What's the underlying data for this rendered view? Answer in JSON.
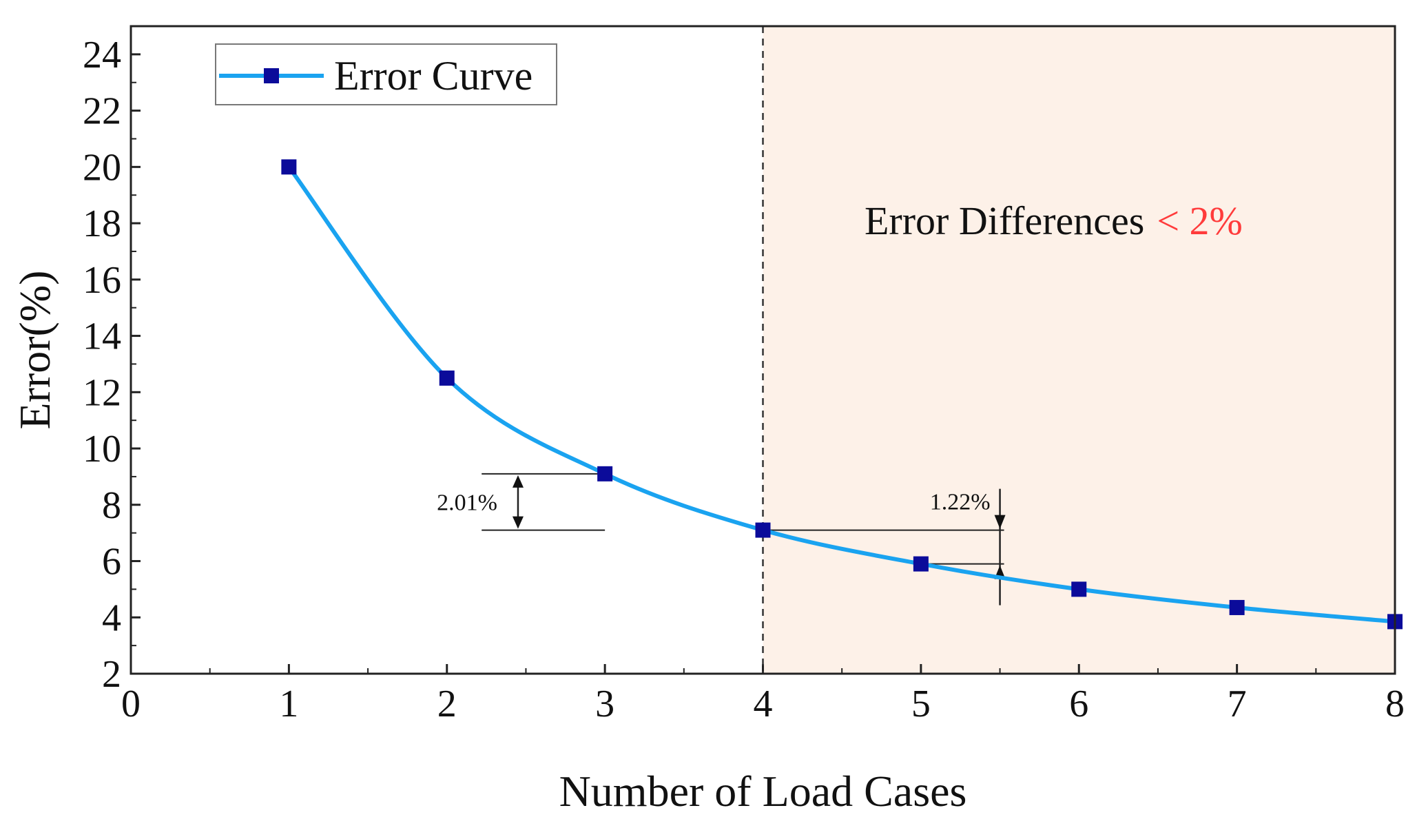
{
  "colors": {
    "line": "#1aa3f0",
    "marker": "#0b0b9a",
    "region_fill": "#fdf1e8",
    "annotation_highlight": "#ff3b3b",
    "axis": "#222222"
  },
  "chart_data": {
    "type": "line",
    "xlabel": "Number of Load Cases",
    "ylabel": "Error(%)",
    "xlim": [
      0,
      8
    ],
    "ylim": [
      2,
      25
    ],
    "x_ticks": [
      "0",
      "1",
      "2",
      "3",
      "4",
      "5",
      "6",
      "7",
      "8"
    ],
    "y_ticks": [
      "2",
      "4",
      "6",
      "8",
      "10",
      "12",
      "14",
      "16",
      "18",
      "20",
      "22",
      "24"
    ],
    "series": [
      {
        "name": "Error Curve",
        "x": [
          1,
          2,
          3,
          4,
          5,
          6,
          7,
          8
        ],
        "y": [
          20.0,
          12.5,
          9.1,
          7.1,
          5.9,
          5.0,
          4.35,
          3.85
        ]
      }
    ],
    "legend": {
      "position": "top-left"
    },
    "shaded_region": {
      "x_from": 4,
      "x_to": 8
    },
    "vertical_reference_line": {
      "x": 4,
      "style": "dashed"
    },
    "annotations": {
      "region_label": {
        "text": "Error Differences",
        "highlight": "< 2%"
      },
      "diff_left": {
        "label": "2.01%",
        "y_from": 9.1,
        "y_to": 7.1,
        "x_arrow": 2.45
      },
      "diff_right": {
        "label": "1.22%",
        "y_from": 7.1,
        "y_to": 5.9,
        "x_arrow": 5.5
      }
    }
  }
}
